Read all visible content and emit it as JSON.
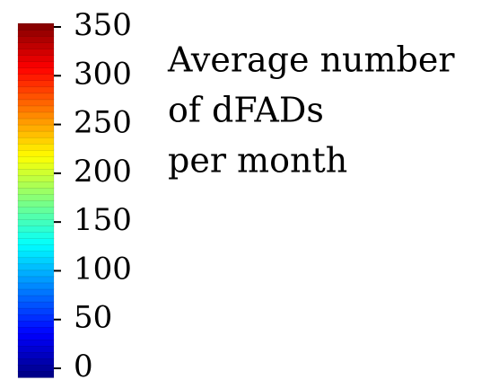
{
  "chart_data": {
    "type": "colorbar",
    "title": [
      "Average number",
      "of dFADs",
      "per month"
    ],
    "colormap": "jet",
    "ylim": [
      0,
      350
    ],
    "yticks": [
      0,
      50,
      100,
      150,
      200,
      250,
      300,
      350
    ]
  }
}
